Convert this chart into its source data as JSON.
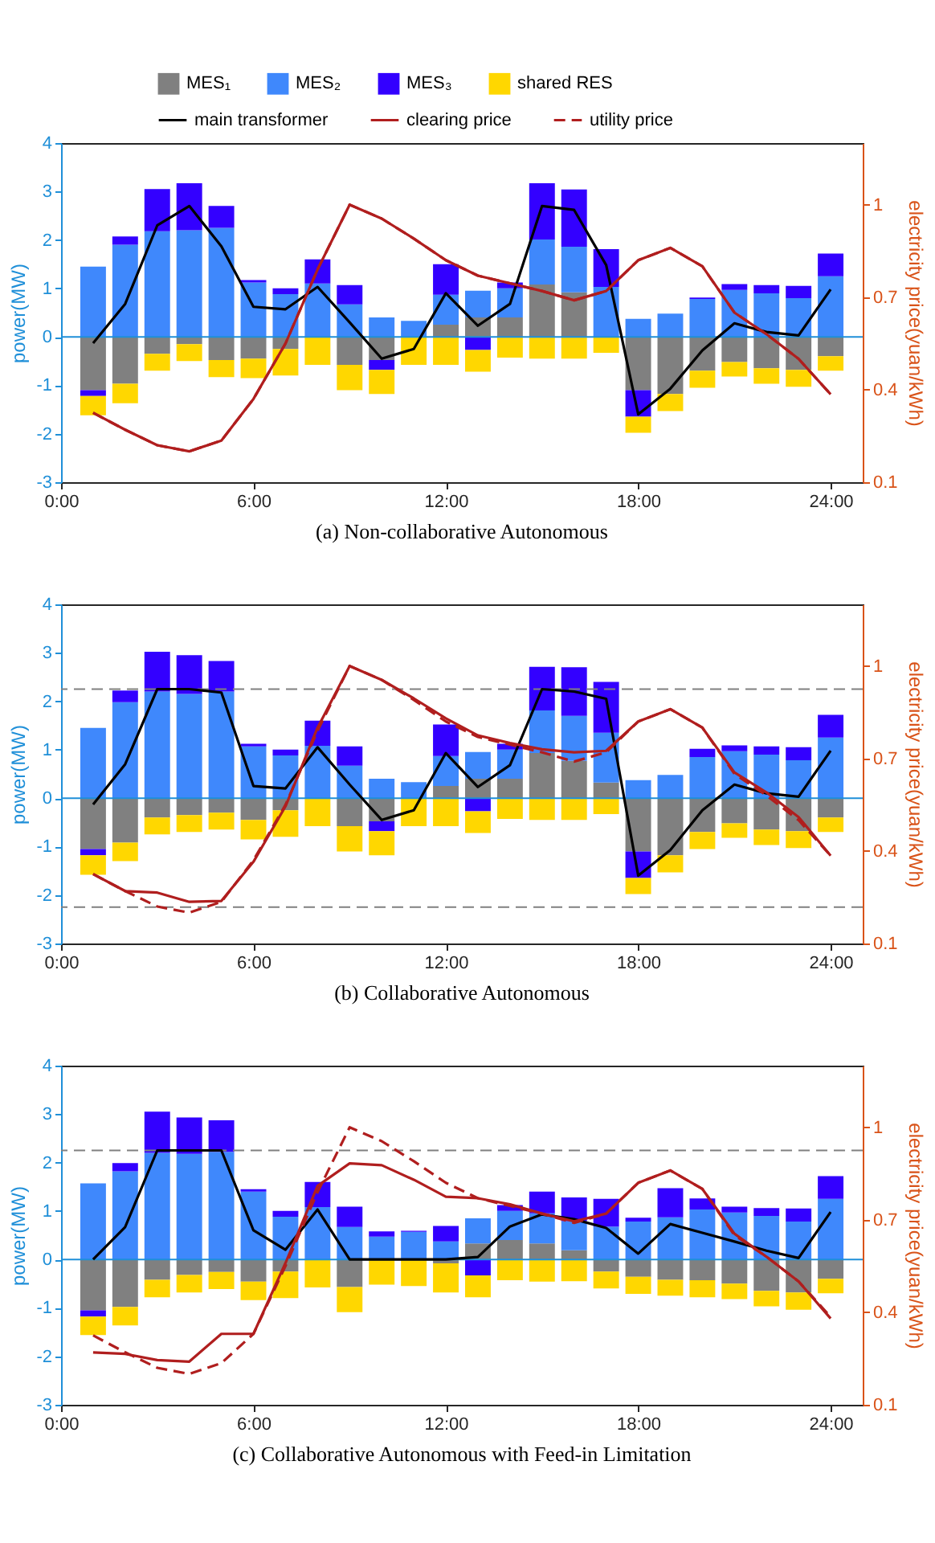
{
  "chart_data": [
    {
      "type": "bar",
      "stacked": true,
      "title": "(a) Non-collaborative Autonomous",
      "ylabel": "power(MW)",
      "y2label": "electricity price(yuan/kWh)",
      "legend": "top",
      "x": [
        1,
        2,
        3,
        4,
        5,
        6,
        7,
        8,
        9,
        10,
        11,
        12,
        13,
        14,
        15,
        16,
        17,
        18,
        19,
        20,
        21,
        22,
        23,
        24
      ],
      "xlim": [
        0,
        25
      ],
      "xticks": [
        {
          "value": 0,
          "label": "0:00"
        },
        {
          "value": 6,
          "label": "6:00"
        },
        {
          "value": 12,
          "label": "12:00"
        },
        {
          "value": 18,
          "label": "18:00"
        },
        {
          "value": 24,
          "label": "24:00"
        }
      ],
      "ylim": [
        -3,
        4
      ],
      "yticks": [
        -3,
        -2,
        -1,
        0,
        1,
        2,
        3,
        4
      ],
      "y2lim": [
        0.1,
        1.2
      ],
      "y2ticks": [
        0.1,
        0.4,
        0.7,
        1
      ],
      "ref_lines": [
        {
          "axis": "y",
          "value": 0,
          "color": "#1f8fd8",
          "line_style": "solid"
        }
      ],
      "series": [
        {
          "name": "MES₁",
          "type": "bar",
          "color": "#808080",
          "values": [
            -1.1,
            -0.97,
            -0.35,
            -0.15,
            -0.48,
            -0.45,
            -0.25,
            0,
            -0.58,
            -0.48,
            0,
            0.25,
            0.4,
            0.4,
            1.08,
            0.92,
            0,
            -1.1,
            -1.18,
            -0.7,
            -0.52,
            -0.65,
            -0.68,
            -0.4
          ]
        },
        {
          "name": "MES₂",
          "type": "bar",
          "color": "#3f88fc",
          "values": [
            1.45,
            1.9,
            2.18,
            2.2,
            2.25,
            1.12,
            0.88,
            1.1,
            0.67,
            0.4,
            0.33,
            0.62,
            0.55,
            0.6,
            0.93,
            0.94,
            1.03,
            0.37,
            0.48,
            0.78,
            0.97,
            0.9,
            0.8,
            1.25
          ]
        },
        {
          "name": "MES₃",
          "type": "bar",
          "color": "#3300ff",
          "values": [
            -0.12,
            0.17,
            0.87,
            0.97,
            0.45,
            0.05,
            0.12,
            0.5,
            0.4,
            -0.2,
            0,
            0.63,
            -0.27,
            0.12,
            1.16,
            1.18,
            0.78,
            -0.55,
            0,
            0.03,
            0.12,
            0.17,
            0.25,
            0.47
          ]
        },
        {
          "name": "shared RES",
          "type": "bar",
          "color": "#ffd700",
          "values": [
            -0.4,
            -0.4,
            -0.35,
            -0.35,
            -0.35,
            -0.4,
            -0.55,
            -0.58,
            -0.52,
            -0.5,
            -0.58,
            -0.58,
            -0.45,
            -0.43,
            -0.45,
            -0.45,
            -0.33,
            -0.33,
            -0.35,
            -0.35,
            -0.3,
            -0.32,
            -0.35,
            -0.3
          ]
        },
        {
          "name": "main transformer",
          "type": "line",
          "color": "#000000",
          "line_style": "solid",
          "values": [
            -0.13,
            0.68,
            2.3,
            2.7,
            1.87,
            0.62,
            0.57,
            1.03,
            0.3,
            -0.45,
            -0.25,
            0.9,
            0.23,
            0.68,
            2.7,
            2.62,
            1.48,
            -1.6,
            -1.07,
            -0.28,
            0.28,
            0.1,
            0.03,
            0.98
          ]
        },
        {
          "name": "clearing price",
          "type": "line",
          "axis": "y2",
          "color": "#b01e1e",
          "line_style": "solid",
          "values": [
            0.325,
            0.27,
            0.22,
            0.2,
            0.235,
            0.37,
            0.55,
            0.79,
            1.0,
            0.955,
            0.89,
            0.82,
            0.77,
            0.745,
            0.72,
            0.69,
            0.72,
            0.82,
            0.86,
            0.8,
            0.65,
            0.58,
            0.5,
            0.385
          ]
        },
        {
          "name": "utility price",
          "type": "line",
          "axis": "y2",
          "color": "#b01e1e",
          "line_style": "dashed",
          "values": [
            0.325,
            0.27,
            0.22,
            0.2,
            0.235,
            0.37,
            0.55,
            0.79,
            1.0,
            0.955,
            0.89,
            0.82,
            0.77,
            0.745,
            0.72,
            0.69,
            0.72,
            0.82,
            0.86,
            0.8,
            0.65,
            0.58,
            0.5,
            0.385
          ]
        }
      ]
    },
    {
      "type": "bar",
      "stacked": true,
      "title": "(b) Collaborative Autonomous",
      "ylabel": "power(MW)",
      "y2label": "electricity price(yuan/kWh)",
      "x": [
        1,
        2,
        3,
        4,
        5,
        6,
        7,
        8,
        9,
        10,
        11,
        12,
        13,
        14,
        15,
        16,
        17,
        18,
        19,
        20,
        21,
        22,
        23,
        24
      ],
      "xlim": [
        0,
        25
      ],
      "xticks": [
        {
          "value": 0,
          "label": "0:00"
        },
        {
          "value": 6,
          "label": "6:00"
        },
        {
          "value": 12,
          "label": "12:00"
        },
        {
          "value": 18,
          "label": "18:00"
        },
        {
          "value": 24,
          "label": "24:00"
        }
      ],
      "ylim": [
        -3,
        4
      ],
      "yticks": [
        -3,
        -2,
        -1,
        0,
        1,
        2,
        3,
        4
      ],
      "y2lim": [
        0.1,
        1.2
      ],
      "y2ticks": [
        0.1,
        0.4,
        0.7,
        1
      ],
      "ref_lines": [
        {
          "axis": "y",
          "value": 0,
          "color": "#1f8fd8",
          "line_style": "solid"
        },
        {
          "axis": "y",
          "value": 2.25,
          "color": "#808080",
          "line_style": "dashed"
        },
        {
          "axis": "y",
          "value": -2.25,
          "color": "#808080",
          "line_style": "dashed"
        }
      ],
      "series": [
        {
          "type": "bar",
          "color": "#808080",
          "values": [
            -1.05,
            -0.92,
            -0.4,
            -0.35,
            -0.3,
            -0.45,
            -0.25,
            0,
            -0.58,
            -0.48,
            0,
            0.25,
            0.4,
            0.4,
            0.93,
            0.77,
            0.32,
            -1.1,
            -1.18,
            -0.7,
            -0.52,
            -0.65,
            -0.68,
            -0.4
          ]
        },
        {
          "type": "bar",
          "color": "#3f88fc",
          "values": [
            1.45,
            1.98,
            2.2,
            2.15,
            2.2,
            1.07,
            0.88,
            1.08,
            0.67,
            0.4,
            0.33,
            0.62,
            0.55,
            0.6,
            0.88,
            0.93,
            1.03,
            0.37,
            0.48,
            0.85,
            0.97,
            0.9,
            0.78,
            1.25
          ]
        },
        {
          "type": "bar",
          "color": "#3300ff",
          "values": [
            -0.13,
            0.24,
            0.82,
            0.8,
            0.63,
            0.05,
            0.12,
            0.52,
            0.4,
            -0.2,
            0,
            0.65,
            -0.27,
            0.12,
            0.9,
            1.0,
            1.05,
            -0.55,
            0,
            0.17,
            0.12,
            0.17,
            0.27,
            0.47
          ]
        },
        {
          "type": "bar",
          "color": "#ffd700",
          "values": [
            -0.4,
            -0.38,
            -0.35,
            -0.35,
            -0.35,
            -0.4,
            -0.55,
            -0.58,
            -0.52,
            -0.5,
            -0.58,
            -0.58,
            -0.45,
            -0.43,
            -0.45,
            -0.45,
            -0.33,
            -0.33,
            -0.35,
            -0.35,
            -0.3,
            -0.32,
            -0.35,
            -0.3
          ]
        },
        {
          "type": "line",
          "color": "#000000",
          "line_style": "solid",
          "values": [
            -0.13,
            0.7,
            2.25,
            2.25,
            2.18,
            0.25,
            0.2,
            1.05,
            0.28,
            -0.45,
            -0.25,
            0.93,
            0.23,
            0.68,
            2.25,
            2.2,
            2.05,
            -1.6,
            -1.07,
            -0.25,
            0.28,
            0.1,
            0.03,
            0.98
          ]
        },
        {
          "type": "line",
          "axis": "y2",
          "color": "#b01e1e",
          "line_style": "solid",
          "values": [
            0.325,
            0.27,
            0.265,
            0.235,
            0.238,
            0.365,
            0.545,
            0.8,
            1.0,
            0.955,
            0.895,
            0.83,
            0.775,
            0.75,
            0.73,
            0.72,
            0.725,
            0.82,
            0.86,
            0.8,
            0.655,
            0.59,
            0.51,
            0.385
          ]
        },
        {
          "type": "line",
          "axis": "y2",
          "color": "#b01e1e",
          "line_style": "dashed",
          "values": [
            0.325,
            0.27,
            0.22,
            0.2,
            0.235,
            0.37,
            0.55,
            0.79,
            1.0,
            0.955,
            0.89,
            0.82,
            0.77,
            0.745,
            0.72,
            0.69,
            0.72,
            0.82,
            0.86,
            0.8,
            0.65,
            0.58,
            0.5,
            0.385
          ]
        }
      ]
    },
    {
      "type": "bar",
      "stacked": true,
      "title": "(c) Collaborative Autonomous with Feed-in Limitation",
      "ylabel": "power(MW)",
      "y2label": "electricity price(yuan/kWh)",
      "x": [
        1,
        2,
        3,
        4,
        5,
        6,
        7,
        8,
        9,
        10,
        11,
        12,
        13,
        14,
        15,
        16,
        17,
        18,
        19,
        20,
        21,
        22,
        23,
        24
      ],
      "xlim": [
        0,
        25
      ],
      "xticks": [
        {
          "value": 0,
          "label": "0:00"
        },
        {
          "value": 6,
          "label": "6:00"
        },
        {
          "value": 12,
          "label": "12:00"
        },
        {
          "value": 18,
          "label": "18:00"
        },
        {
          "value": 24,
          "label": "24:00"
        }
      ],
      "ylim": [
        -3,
        4
      ],
      "yticks": [
        -3,
        -2,
        -1,
        0,
        1,
        2,
        3,
        4
      ],
      "y2lim": [
        0.1,
        1.2
      ],
      "y2ticks": [
        0.1,
        0.4,
        0.7,
        1
      ],
      "ref_lines": [
        {
          "axis": "y",
          "value": 0,
          "color": "#1f8fd8",
          "line_style": "solid"
        },
        {
          "axis": "y",
          "value": 2.25,
          "color": "#808080",
          "line_style": "dashed"
        }
      ],
      "series": [
        {
          "type": "bar",
          "color": "#808080",
          "values": [
            -1.05,
            -0.98,
            -0.42,
            -0.32,
            -0.26,
            -0.46,
            -0.25,
            0,
            -0.57,
            null,
            null,
            -0.08,
            0.33,
            0.4,
            0.33,
            0.19,
            -0.25,
            -0.36,
            -0.42,
            -0.43,
            -0.5,
            -0.65,
            -0.68,
            -0.4
          ]
        },
        {
          "type": "bar",
          "color": "#3f88fc",
          "values": [
            1.57,
            1.82,
            2.2,
            2.18,
            2.22,
            1.4,
            0.88,
            1.08,
            0.67,
            0.47,
            0.57,
            0.37,
            0.52,
            0.6,
            0.62,
            0.6,
            0.68,
            0.78,
            0.87,
            1.03,
            0.97,
            0.9,
            0.78,
            1.25
          ]
        },
        {
          "type": "bar",
          "color": "#3300ff",
          "values": [
            -0.13,
            0.17,
            0.85,
            0.75,
            0.65,
            0.05,
            0.12,
            0.52,
            0.42,
            0.11,
            0.02,
            0.32,
            -0.33,
            0.12,
            0.45,
            0.49,
            0.57,
            0.08,
            0.6,
            0.23,
            0.12,
            0.16,
            0.27,
            0.47
          ]
        },
        {
          "type": "bar",
          "color": "#ffd700",
          "values": [
            -0.38,
            -0.38,
            -0.36,
            -0.36,
            -0.35,
            -0.38,
            -0.55,
            -0.58,
            -0.52,
            -0.52,
            -0.55,
            -0.6,
            -0.45,
            -0.43,
            -0.46,
            -0.45,
            -0.35,
            -0.35,
            -0.33,
            -0.35,
            -0.32,
            -0.32,
            -0.36,
            -0.3
          ]
        },
        {
          "type": "line",
          "color": "#000000",
          "line_style": "solid",
          "values": [
            0,
            0.67,
            2.25,
            2.25,
            2.25,
            0.6,
            0.2,
            1.03,
            0,
            0,
            0,
            0,
            0.05,
            0.68,
            0.93,
            0.83,
            0.65,
            0.12,
            0.73,
            0.55,
            0.37,
            0.18,
            0.03,
            0.98
          ]
        },
        {
          "type": "line",
          "axis": "y2",
          "color": "#b01e1e",
          "line_style": "solid",
          "values": [
            0.27,
            0.265,
            0.245,
            0.24,
            0.33,
            0.33,
            0.56,
            0.81,
            0.883,
            0.877,
            0.83,
            0.775,
            0.77,
            0.75,
            0.72,
            0.695,
            0.72,
            0.82,
            0.86,
            0.8,
            0.655,
            0.58,
            0.5,
            0.38
          ]
        },
        {
          "type": "line",
          "axis": "y2",
          "color": "#b01e1e",
          "line_style": "dashed",
          "values": [
            0.325,
            0.27,
            0.22,
            0.2,
            0.235,
            0.33,
            0.55,
            0.79,
            1.0,
            0.955,
            0.89,
            0.82,
            0.77,
            0.745,
            0.72,
            0.69,
            0.72,
            0.82,
            0.86,
            0.8,
            0.65,
            0.58,
            0.5,
            0.385
          ]
        }
      ]
    }
  ]
}
